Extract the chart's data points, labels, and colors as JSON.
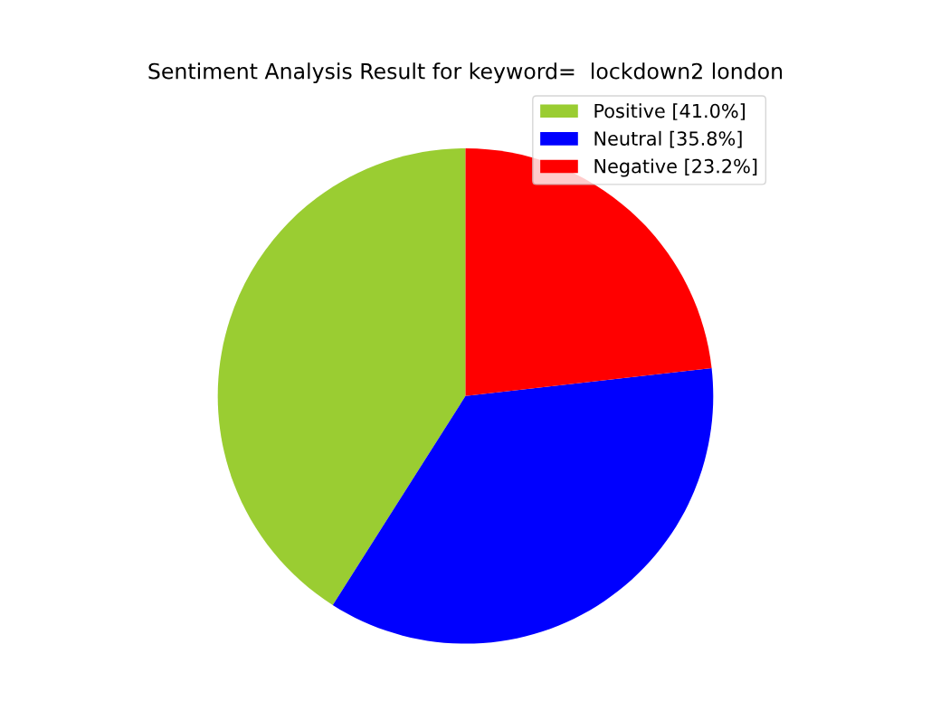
{
  "chart_data": {
    "type": "pie",
    "title": "Sentiment Analysis Result for keyword=  lockdown2 london",
    "categories": [
      "Positive [41.0%]",
      "Neutral [35.8%]",
      "Negative [23.2%]"
    ],
    "values": [
      41.0,
      35.8,
      23.2
    ],
    "colors": [
      "#9acd32",
      "#0000ff",
      "#ff0000"
    ],
    "legend": "top right"
  }
}
